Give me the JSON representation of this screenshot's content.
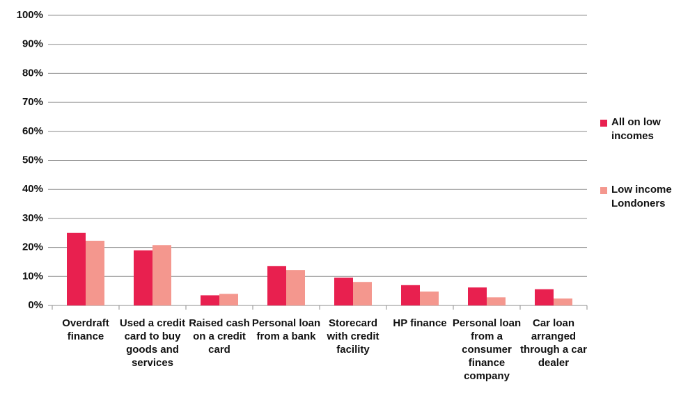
{
  "chart_data": {
    "type": "bar",
    "categories": [
      "Overdraft finance",
      "Used a credit card to buy goods and services",
      "Raised cash on a credit card",
      "Personal loan from a bank",
      "Storecard with credit facility",
      "HP finance",
      "Personal loan from a consumer finance company",
      "Car loan arranged through a car dealer"
    ],
    "series": [
      {
        "name": "All on low incomes",
        "color": "#e8204f",
        "values": [
          25,
          19,
          3.5,
          13.6,
          9.6,
          7,
          6.2,
          5.6
        ]
      },
      {
        "name": "Low income Londoners",
        "color": "#f4978e",
        "values": [
          22.3,
          20.8,
          4,
          12.2,
          8.1,
          4.8,
          2.8,
          2.4
        ]
      }
    ],
    "ylim": [
      0,
      100
    ],
    "yticks": [
      {
        "value": 0,
        "label": "0%"
      },
      {
        "value": 10,
        "label": "10%"
      },
      {
        "value": 20,
        "label": "20%"
      },
      {
        "value": 30,
        "label": "30%"
      },
      {
        "value": 40,
        "label": "40%"
      },
      {
        "value": 50,
        "label": "50%"
      },
      {
        "value": 60,
        "label": "60%"
      },
      {
        "value": 70,
        "label": "70%"
      },
      {
        "value": 80,
        "label": "80%"
      },
      {
        "value": 90,
        "label": "90%"
      },
      {
        "value": 100,
        "label": "100%"
      }
    ],
    "grid": true,
    "legend": "right"
  }
}
